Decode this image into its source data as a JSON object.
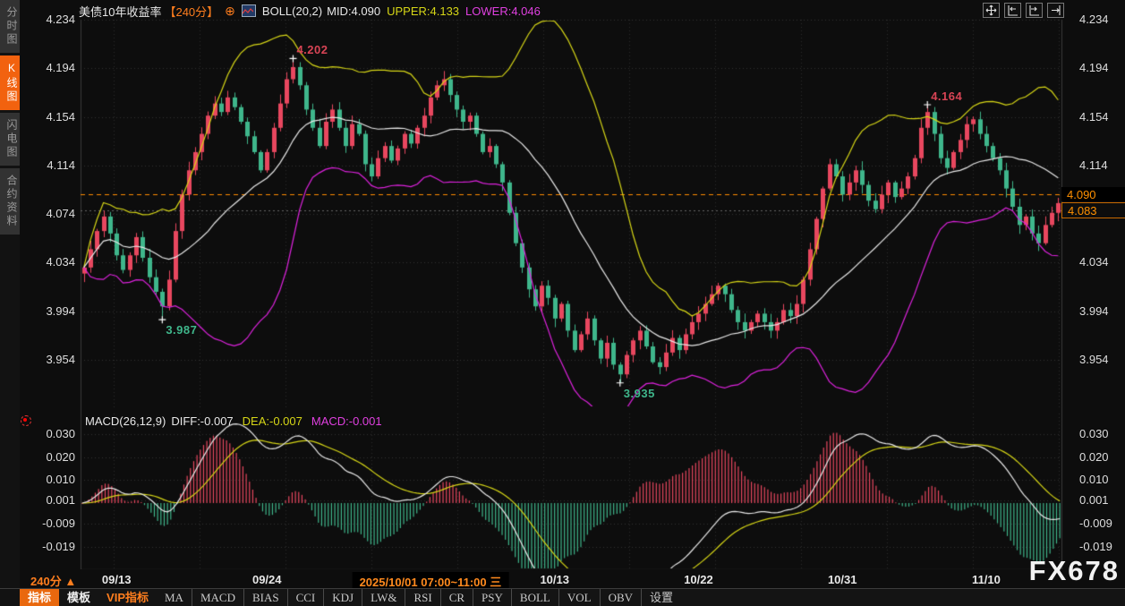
{
  "header": {
    "title": "美债10年收益率",
    "period": "【240分】",
    "plus": "⊕",
    "boll": "BOLL(20,2)",
    "mid": "MID:4.090",
    "upper": "UPPER:4.133",
    "lower": "LOWER:4.046"
  },
  "top_icons": [
    {
      "name": "pan-icon"
    },
    {
      "name": "fit-left-icon"
    },
    {
      "name": "fit-right-icon"
    },
    {
      "name": "shift-right-icon"
    }
  ],
  "sidebar": {
    "items": [
      {
        "label": "分时图",
        "active": false
      },
      {
        "label": "K线图",
        "active": true
      },
      {
        "label": "闪电图",
        "active": false
      },
      {
        "label": "合约资料",
        "active": false
      }
    ]
  },
  "macd_header": {
    "name": "MACD(26,12,9)",
    "diff": "DIFF:-0.007",
    "dea": "DEA:-0.007",
    "macd": "MACD:-0.001"
  },
  "price_tags": {
    "ref": "4.090",
    "last": "4.083"
  },
  "footer": {
    "period": "240分",
    "arrow": "▲",
    "watermark": "FX678",
    "tabs": [
      {
        "label": "指标",
        "type": "active"
      },
      {
        "label": "模板",
        "type": "plain"
      },
      {
        "label": "VIP指标",
        "type": "vip"
      },
      {
        "label": "MA",
        "type": "item"
      },
      {
        "label": "MACD",
        "type": "item"
      },
      {
        "label": "BIAS",
        "type": "item"
      },
      {
        "label": "CCI",
        "type": "item"
      },
      {
        "label": "KDJ",
        "type": "item"
      },
      {
        "label": "LW&",
        "type": "item"
      },
      {
        "label": "RSI",
        "type": "item"
      },
      {
        "label": "CR",
        "type": "item"
      },
      {
        "label": "PSY",
        "type": "item"
      },
      {
        "label": "BOLL",
        "type": "item"
      },
      {
        "label": "VOL",
        "type": "item"
      },
      {
        "label": "OBV",
        "type": "item"
      },
      {
        "label": "设置",
        "type": "item"
      }
    ]
  },
  "chart_data": {
    "type": "candlestick+macd",
    "title": "美债10年收益率 240分",
    "main": {
      "y_ticks": [
        "4.234",
        "4.194",
        "4.154",
        "4.114",
        "4.074",
        "4.034",
        "3.994",
        "3.954"
      ],
      "ref_line": 4.09,
      "last_price": 4.083,
      "boll": {
        "period": 20,
        "mult": 2,
        "mid": 4.09,
        "upper": 4.133,
        "lower": 4.046
      },
      "closes": [
        4.03,
        4.045,
        4.06,
        4.072,
        4.058,
        4.04,
        4.028,
        4.04,
        4.055,
        4.038,
        4.022,
        4.01,
        3.998,
        4.02,
        4.06,
        4.09,
        4.11,
        4.125,
        4.14,
        4.155,
        4.165,
        4.158,
        4.17,
        4.162,
        4.15,
        4.138,
        4.125,
        4.11,
        4.125,
        4.145,
        4.165,
        4.185,
        4.195,
        4.18,
        4.16,
        4.145,
        4.13,
        4.15,
        4.16,
        4.145,
        4.13,
        4.148,
        4.14,
        4.115,
        4.105,
        4.12,
        4.13,
        4.118,
        4.128,
        4.14,
        4.132,
        4.145,
        4.155,
        4.17,
        4.18,
        4.185,
        4.172,
        4.16,
        4.15,
        4.155,
        4.14,
        4.125,
        4.13,
        4.115,
        4.1,
        4.075,
        4.05,
        4.03,
        4.012,
        3.998,
        4.015,
        4.005,
        3.988,
        4.0,
        3.978,
        3.962,
        3.975,
        3.988,
        3.97,
        3.955,
        3.968,
        3.95,
        3.942,
        3.958,
        3.97,
        3.978,
        3.965,
        3.952,
        3.948,
        3.96,
        3.972,
        3.962,
        3.975,
        3.985,
        3.992,
        4.0,
        4.008,
        4.015,
        4.008,
        3.995,
        3.985,
        3.978,
        3.985,
        3.992,
        3.985,
        3.978,
        3.985,
        3.995,
        3.99,
        4.0,
        4.02,
        4.045,
        4.07,
        4.095,
        4.115,
        4.105,
        4.09,
        4.1,
        4.11,
        4.098,
        4.085,
        4.078,
        4.09,
        4.1,
        4.088,
        4.095,
        4.105,
        4.12,
        4.145,
        4.158,
        4.14,
        4.12,
        4.112,
        4.125,
        4.135,
        4.148,
        4.152,
        4.14,
        4.13,
        4.12,
        4.11,
        4.095,
        4.08,
        4.065,
        4.072,
        4.058,
        4.05,
        4.065,
        4.075,
        4.083
      ],
      "extremes": {
        "12": {
          "low": 3.987
        },
        "32": {
          "high": 4.202
        },
        "82": {
          "low": 3.935
        },
        "129": {
          "high": 4.164
        }
      },
      "annotations": [
        {
          "text": "4.202",
          "index": 32,
          "price": 4.202,
          "placement": "above",
          "color": "#d84455"
        },
        {
          "text": "4.164",
          "index": 129,
          "price": 4.164,
          "placement": "above",
          "color": "#d84455"
        },
        {
          "text": "3.987",
          "index": 12,
          "price": 3.987,
          "placement": "below",
          "color": "#3fb68b"
        },
        {
          "text": "3.935",
          "index": 82,
          "price": 3.935,
          "placement": "below",
          "color": "#3fb68b"
        }
      ]
    },
    "macd": {
      "params": [
        26,
        12,
        9
      ],
      "y_ticks": [
        "0.030",
        "0.020",
        "0.010",
        "0.001",
        "-0.009",
        "-0.019"
      ],
      "tick_values": [
        0.03,
        0.02,
        0.01,
        0.001,
        -0.009,
        -0.019
      ],
      "diff": -0.007,
      "dea": -0.007,
      "hist": -0.001
    },
    "x_ticks": [
      {
        "label": "09/13",
        "index": 5,
        "highlight": false
      },
      {
        "label": "09/24",
        "index": 28,
        "highlight": false
      },
      {
        "label": "2025/10/01 07:00~11:00 三",
        "index": 53,
        "highlight": true
      },
      {
        "label": "10/13",
        "index": 72,
        "highlight": false
      },
      {
        "label": "10/22",
        "index": 94,
        "highlight": false
      },
      {
        "label": "10/31",
        "index": 116,
        "highlight": false
      },
      {
        "label": "11/10",
        "index": 138,
        "highlight": false
      }
    ],
    "colors": {
      "up": "#e8475f",
      "down": "#3fb68b",
      "boll_upper": "#d6d616",
      "boll_mid": "#e8e8e8",
      "boll_lower": "#dd22dd",
      "ref_line": "#ff8c00",
      "grid": "#313131",
      "accent": "#ff7e1e",
      "diff_line": "#e8e8e8",
      "dea_line": "#d6d616"
    }
  }
}
